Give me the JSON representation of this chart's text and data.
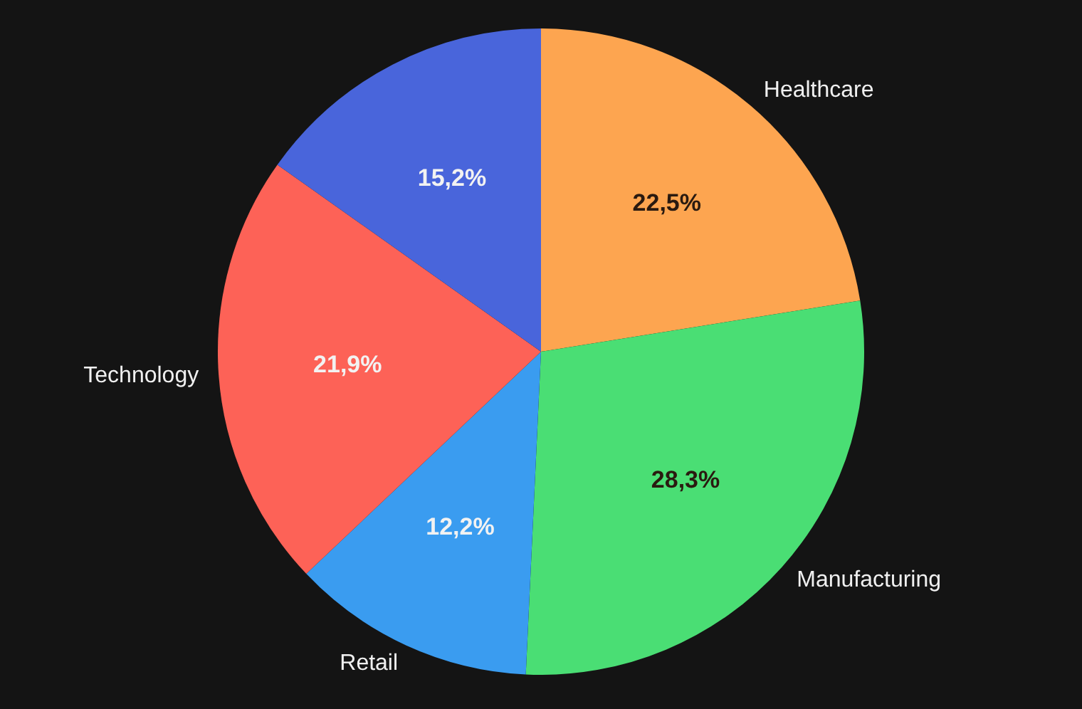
{
  "chart_data": {
    "type": "pie",
    "categories": [
      "Healthcare",
      "Manufacturing",
      "Retail",
      "Technology",
      null
    ],
    "values": [
      22.5,
      28.3,
      12.2,
      21.9,
      15.2
    ],
    "colors": [
      "#fda550",
      "#4ade74",
      "#3a9cf0",
      "#fd6257",
      "#4965db"
    ],
    "value_labels": [
      "22,5%",
      "28,3%",
      "12,2%",
      "21,9%",
      "15,2%"
    ],
    "legend": false
  }
}
